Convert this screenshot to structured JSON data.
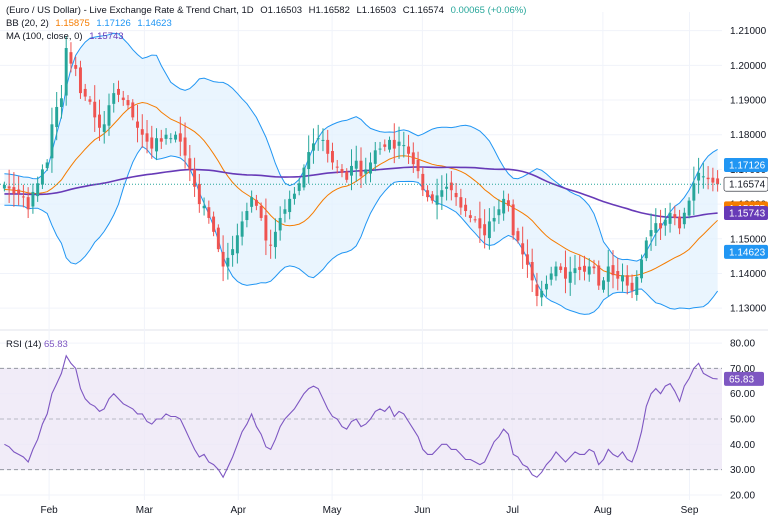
{
  "legend": {
    "title": "(Euro / US Dollar) - Live Exchange Rate & Trend Chart, 1D",
    "open": "O1.16503",
    "high": "H1.16582",
    "low": "L1.16503",
    "close": "C1.16574",
    "change": "0.00065 (+0.06%)",
    "bb_label": "BB (20, 2)",
    "bb_basis": "1.15875",
    "bb_upper": "1.17126",
    "bb_lower": "1.14623",
    "ma_label": "MA (100, close, 0)",
    "ma_value": "1.15743",
    "rsi_label": "RSI (14)",
    "rsi_value": "65.83"
  },
  "colors": {
    "up": "#26a69a",
    "down": "#ef5350",
    "bb_basis": "#f57c00",
    "bb_band": "#2196f3",
    "bb_fill": "#e3f2fd",
    "ma": "#673ab7",
    "rsi_line": "#7e57c2",
    "rsi_fill": "#ede7f6",
    "price_tag": "#2196f3",
    "last_price_tag": "#ffffff",
    "grid": "#f0f3fa"
  },
  "chart_data": [
    {
      "type": "candlestick",
      "price_axis": {
        "ticks": [
          "1.21000",
          "1.20000",
          "1.19000",
          "1.18000",
          "1.17000",
          "1.16000",
          "1.15000",
          "1.14000",
          "1.13000"
        ],
        "range": [
          1.126,
          1.2125
        ]
      },
      "time_axis": [
        "Feb",
        "Mar",
        "Apr",
        "May",
        "Jun",
        "Jul",
        "Aug",
        "Sep"
      ],
      "price_tags": [
        {
          "label": "1.17126",
          "value": 1.17126,
          "color": "#2196f3",
          "text_color": "#ffffff"
        },
        {
          "label": "1.16574",
          "value": 1.16574,
          "color": "#ffffff",
          "text_color": "#131722"
        },
        {
          "label": "1.15875",
          "value": 1.15875,
          "color": "#f57c00",
          "text_color": "#ffffff"
        },
        {
          "label": "1.15743",
          "value": 1.15743,
          "color": "#673ab7",
          "text_color": "#ffffff"
        },
        {
          "label": "1.14623",
          "value": 1.14623,
          "color": "#2196f3",
          "text_color": "#ffffff"
        }
      ],
      "close": [
        1.1655,
        1.1645,
        1.163,
        1.163,
        1.162,
        1.1585,
        1.1635,
        1.166,
        1.17,
        1.172,
        1.183,
        1.188,
        1.1905,
        1.205,
        1.2005,
        1.199,
        1.192,
        1.191,
        1.1895,
        1.185,
        1.182,
        1.183,
        1.1885,
        1.192,
        1.1915,
        1.19,
        1.1885,
        1.185,
        1.182,
        1.18,
        1.178,
        1.176,
        1.179,
        1.178,
        1.18,
        1.179,
        1.18,
        1.178,
        1.174,
        1.17,
        1.165,
        1.16,
        1.1595,
        1.156,
        1.152,
        1.147,
        1.142,
        1.1445,
        1.147,
        1.151,
        1.155,
        1.158,
        1.162,
        1.1595,
        1.156,
        1.1495,
        1.148,
        1.152,
        1.156,
        1.1585,
        1.1615,
        1.163,
        1.166,
        1.1705,
        1.175,
        1.1775,
        1.179,
        1.1785,
        1.1745,
        1.172,
        1.1705,
        1.169,
        1.167,
        1.171,
        1.1725,
        1.168,
        1.17,
        1.172,
        1.1755,
        1.176,
        1.1765,
        1.1785,
        1.176,
        1.178,
        1.177,
        1.1745,
        1.1715,
        1.1695,
        1.164,
        1.162,
        1.161,
        1.1625,
        1.164,
        1.165,
        1.164,
        1.162,
        1.159,
        1.158,
        1.156,
        1.1555,
        1.153,
        1.151,
        1.155,
        1.156,
        1.1585,
        1.1615,
        1.1595,
        1.151,
        1.1495,
        1.1455,
        1.1425,
        1.138,
        1.1335,
        1.135,
        1.137,
        1.14,
        1.142,
        1.141,
        1.1385,
        1.1405,
        1.1415,
        1.141,
        1.1405,
        1.142,
        1.1415,
        1.1365,
        1.138,
        1.142,
        1.1395,
        1.1385,
        1.1395,
        1.1365,
        1.135,
        1.139,
        1.144,
        1.1495,
        1.1525,
        1.1545,
        1.153,
        1.1555,
        1.1575,
        1.156,
        1.153,
        1.1575,
        1.161,
        1.166,
        1.169,
        1.168,
        1.1672,
        1.1662,
        1.1657
      ]
    },
    {
      "type": "line",
      "name": "RSI (14)",
      "y_axis": {
        "ticks": [
          "80.00",
          "70.00",
          "60.00",
          "50.00",
          "40.00",
          "30.00",
          "20.00"
        ],
        "range": [
          18,
          82
        ]
      },
      "bands": {
        "upper": 70,
        "middle": 50,
        "lower": 30
      },
      "last_value_tag": "65.83",
      "values": [
        40,
        39,
        37,
        36,
        35,
        33,
        38,
        42,
        48,
        52,
        60,
        64,
        68,
        75,
        72,
        70,
        62,
        58,
        56,
        55,
        53,
        54,
        58,
        60,
        58,
        56,
        55,
        54,
        52,
        52,
        49,
        48,
        50,
        50,
        52,
        51,
        51,
        50,
        46,
        42,
        38,
        35,
        36,
        33,
        32,
        30,
        27,
        31,
        35,
        40,
        45,
        48,
        52,
        47,
        44,
        39,
        38,
        42,
        47,
        50,
        52,
        54,
        57,
        60,
        62,
        63,
        62,
        58,
        54,
        51,
        50,
        47,
        46,
        49,
        50,
        47,
        48,
        50,
        53,
        54,
        53,
        55,
        51,
        53,
        52,
        49,
        46,
        43,
        38,
        36,
        36,
        38,
        40,
        40,
        38,
        38,
        36,
        34,
        34,
        33,
        32,
        33,
        37,
        41,
        43,
        46,
        44,
        36,
        35,
        32,
        31,
        28,
        27,
        29,
        32,
        34,
        37,
        35,
        33,
        35,
        37,
        36,
        36,
        38,
        37,
        32,
        34,
        38,
        36,
        35,
        37,
        34,
        33,
        38,
        45,
        55,
        60,
        62,
        60,
        63,
        64,
        61,
        57,
        63,
        66,
        70,
        72,
        68,
        67,
        66,
        65.83
      ]
    }
  ]
}
